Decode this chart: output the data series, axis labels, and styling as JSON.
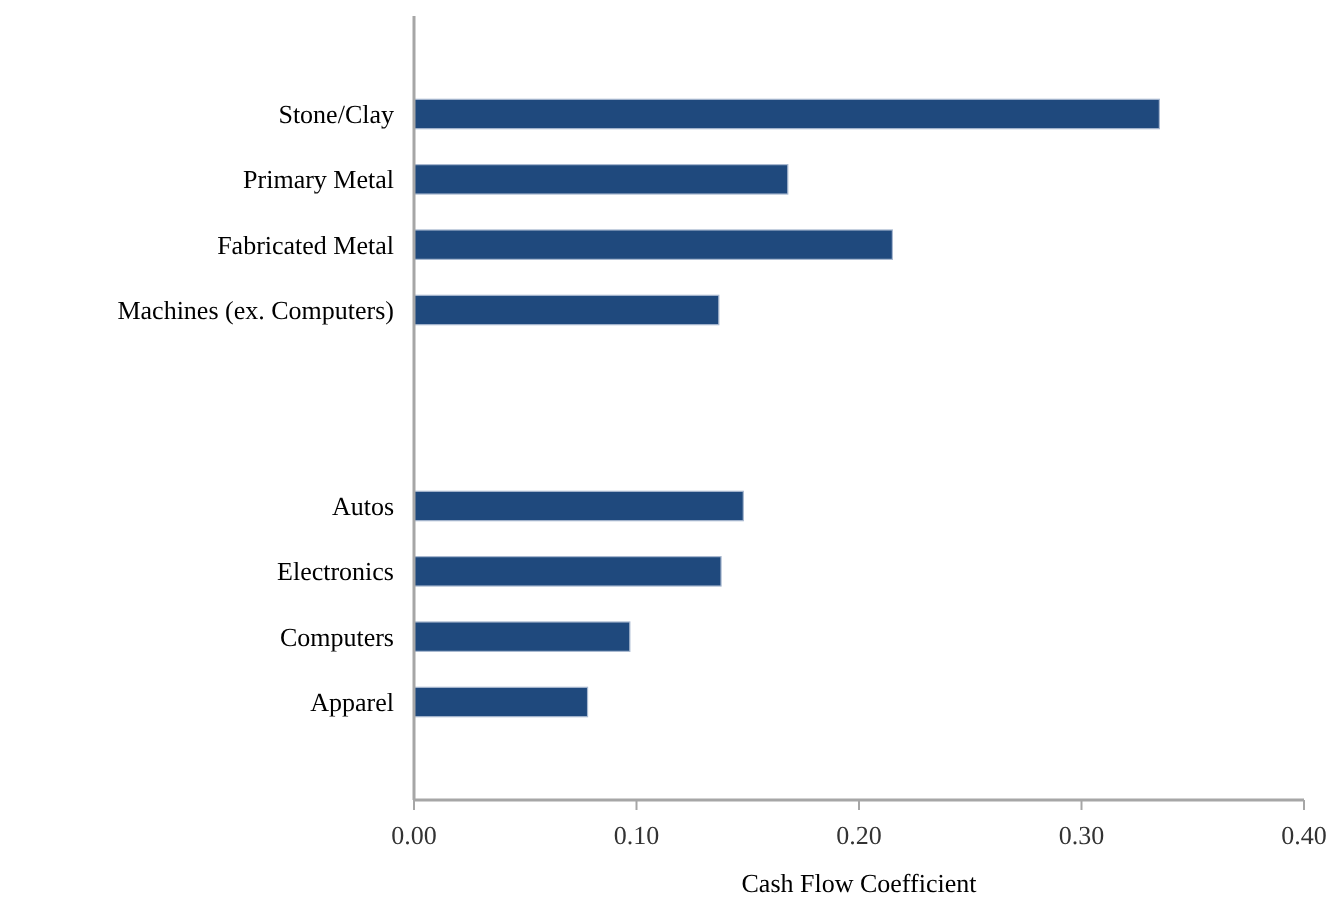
{
  "chart_data": {
    "type": "bar",
    "orientation": "horizontal",
    "xlabel": "Cash Flow Coefficient",
    "categories": [
      null,
      "Stone/Clay",
      "Primary Metal",
      "Fabricated Metal",
      "Machines (ex. Computers)",
      null,
      null,
      "Autos",
      "Electronics",
      "Computers",
      "Apparel",
      null
    ],
    "values": [
      null,
      0.335,
      0.168,
      0.215,
      0.137,
      null,
      null,
      0.148,
      0.138,
      0.097,
      0.078,
      null
    ],
    "color": "#1f497d",
    "xlim": [
      0,
      0.4
    ],
    "xticks": [
      {
        "value": 0,
        "label": "0.00"
      },
      {
        "value": 0.1,
        "label": "0.10"
      },
      {
        "value": 0.2,
        "label": "0.20"
      },
      {
        "value": 0.3,
        "label": "0.30"
      },
      {
        "value": 0.4,
        "label": "0.40"
      }
    ],
    "grid": false
  }
}
